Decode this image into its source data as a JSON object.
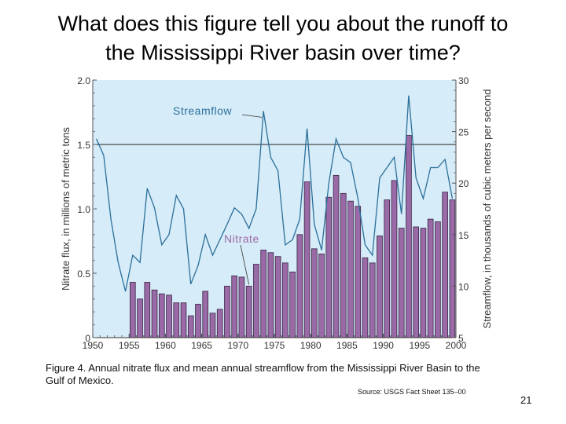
{
  "slide": {
    "title_line1": "What does this figure tell you about the runoff to",
    "title_line2": "the Mississippi River basin over time?",
    "caption": "Figure 4.  Annual nitrate flux and mean annual streamflow from the Mississippi River Basin to the Gulf of Mexico.",
    "source": "Source:  USGS Fact Sheet 135–00",
    "page_number": "21"
  },
  "colors": {
    "plot_background": "#d6ecf8",
    "bar_fill": "#9a6aa6",
    "bar_stroke": "#3a2446",
    "streamflow_line": "#2b6f9a",
    "label_color": "#2b6f9a"
  },
  "chart_data": {
    "type": "bar",
    "xlabel": "",
    "ylabel": "Nitrate flux, in millions of metric tons",
    "y2label": "Streamflow, in thousands of cubic meters per second",
    "xlim": [
      1950,
      2000
    ],
    "ylim": [
      0,
      2.0
    ],
    "y2lim": [
      5,
      30
    ],
    "x_ticks": [
      "1950",
      "1955",
      "1960",
      "1965",
      "1970",
      "1975",
      "1980",
      "1985",
      "1990",
      "1995",
      "2000"
    ],
    "y_ticks": [
      "0",
      "0.5",
      "1.0",
      "1.5",
      "2.0"
    ],
    "y2_ticks": [
      "5",
      "10",
      "15",
      "20",
      "25",
      "30"
    ],
    "reference_line_y": 1.5,
    "grid": false,
    "series": [
      {
        "name": "Nitrate",
        "kind": "bar",
        "axis": "left",
        "x": [
          1955,
          1956,
          1957,
          1958,
          1959,
          1960,
          1961,
          1962,
          1963,
          1964,
          1965,
          1966,
          1967,
          1968,
          1969,
          1970,
          1971,
          1972,
          1973,
          1974,
          1975,
          1976,
          1977,
          1978,
          1979,
          1980,
          1981,
          1982,
          1983,
          1984,
          1985,
          1986,
          1987,
          1988,
          1989,
          1990,
          1991,
          1992,
          1993,
          1994,
          1995,
          1996,
          1997,
          1998,
          1999
        ],
        "values": [
          0.43,
          0.3,
          0.43,
          0.37,
          0.34,
          0.33,
          0.27,
          0.27,
          0.17,
          0.26,
          0.36,
          0.19,
          0.22,
          0.4,
          0.48,
          0.47,
          0.4,
          0.57,
          0.68,
          0.66,
          0.63,
          0.58,
          0.51,
          0.8,
          1.21,
          0.69,
          0.65,
          1.09,
          1.26,
          1.12,
          1.06,
          1.02,
          0.62,
          0.58,
          0.79,
          1.07,
          1.22,
          0.85,
          1.57,
          0.86,
          0.85,
          0.92,
          0.9,
          1.13,
          1.07
        ]
      },
      {
        "name": "Streamflow",
        "kind": "line",
        "axis": "right",
        "x": [
          1950,
          1951,
          1952,
          1953,
          1954,
          1955,
          1956,
          1957,
          1958,
          1959,
          1960,
          1961,
          1962,
          1963,
          1964,
          1965,
          1966,
          1967,
          1968,
          1969,
          1970,
          1971,
          1972,
          1973,
          1974,
          1975,
          1976,
          1977,
          1978,
          1979,
          1980,
          1981,
          1982,
          1983,
          1984,
          1985,
          1986,
          1987,
          1988,
          1989,
          1990,
          1991,
          1992,
          1993,
          1994,
          1995,
          1996,
          1997,
          1998,
          1999
        ],
        "values": [
          24.3,
          22.7,
          16.5,
          12.3,
          9.5,
          13.0,
          12.3,
          19.5,
          17.6,
          14.0,
          15.0,
          18.8,
          17.5,
          10.2,
          12.0,
          15.0,
          13.0,
          14.5,
          16.0,
          17.6,
          17.0,
          15.6,
          17.5,
          27.0,
          22.5,
          21.2,
          14.0,
          14.5,
          16.5,
          25.3,
          16.0,
          13.5,
          20.0,
          24.3,
          22.5,
          22.0,
          18.5,
          14.0,
          13.0,
          20.5,
          21.5,
          22.5,
          17.0,
          28.5,
          20.5,
          18.5,
          21.5,
          21.5,
          22.3,
          18.5
        ]
      }
    ],
    "annotations": [
      {
        "text": "Streamflow",
        "target_year": 1973
      },
      {
        "text": "Nitrate",
        "target_year": 1971
      }
    ]
  }
}
